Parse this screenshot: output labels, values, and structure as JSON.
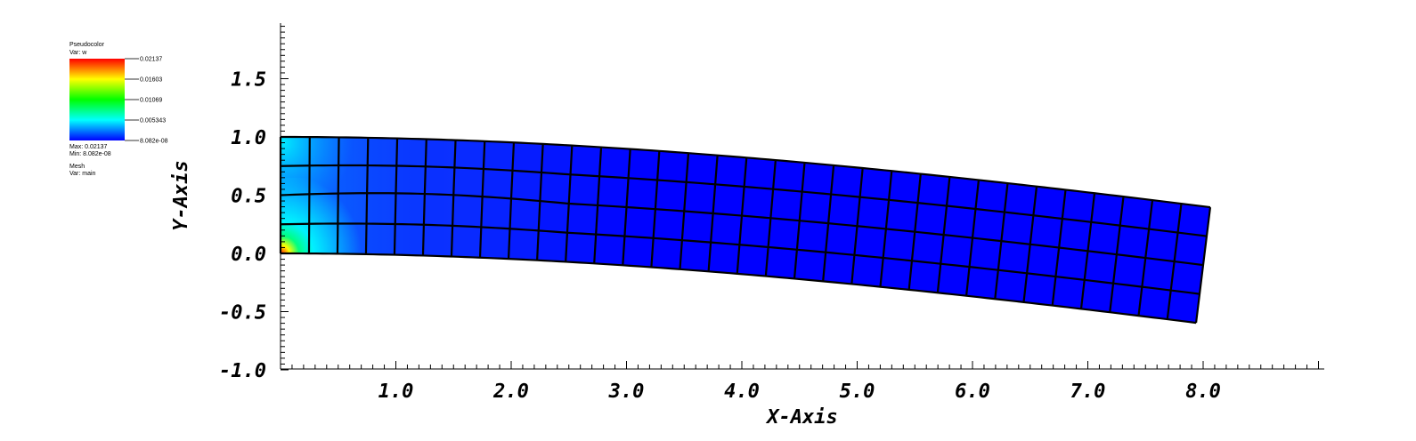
{
  "chart_data": {
    "type": "heatmap",
    "plot_kind": "Pseudocolor plot of a deformed beam mesh",
    "xlabel": "X-Axis",
    "ylabel": "Y-Axis",
    "xlim": [
      0.0,
      9.0
    ],
    "ylim": [
      -1.0,
      2.0
    ],
    "x_ticks": [
      1.0,
      2.0,
      3.0,
      4.0,
      5.0,
      6.0,
      7.0,
      8.0
    ],
    "x_tick_labels": [
      "1.0",
      "2.0",
      "3.0",
      "4.0",
      "5.0",
      "6.0",
      "7.0",
      "8.0"
    ],
    "y_ticks": [
      -1.0,
      -0.5,
      0.0,
      0.5,
      1.0,
      1.5
    ],
    "y_tick_labels": [
      "-1.0",
      "-0.5",
      "0.0",
      "0.5",
      "1.0",
      "1.5"
    ],
    "mesh": {
      "cells_x": 32,
      "cells_y": 4,
      "beam_length": 8.0,
      "beam_height": 1.0,
      "tip_deflection": -0.6,
      "description": "Left end fixed, beam sags downward toward the right end; rows are slightly curved"
    },
    "legend": {
      "pseudocolor_title": "Pseudocolor",
      "pseudocolor_var": "Var: w",
      "color_scale_labels": [
        "0.02137",
        "0.01603",
        "0.01069",
        "0.005343",
        "8.082e-08"
      ],
      "max_label": "Max: 0.02137",
      "min_label": "Min: 8.082e-08",
      "mesh_title": "Mesh",
      "mesh_var": "Var: main"
    },
    "value_range": [
      8.082e-08,
      0.02137
    ],
    "colors": {
      "low": "#0000ff",
      "cyan": "#00ffff",
      "green": "#00ff00",
      "yellow": "#ffff00",
      "high": "#ff0000",
      "mesh_lines": "#000000"
    }
  }
}
